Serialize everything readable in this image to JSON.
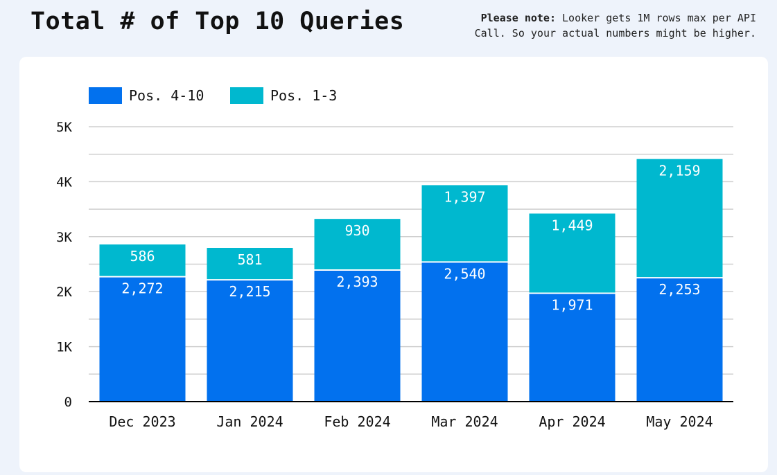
{
  "header": {
    "title": "Total # of Top 10 Queries",
    "note_bold": "Please note:",
    "note_line1": "Looker gets 1M rows max per API",
    "note_line2": "Call. So your actual numbers might be higher."
  },
  "colors": {
    "background": "#eef3fb",
    "card": "#ffffff",
    "pos_4_10": "#0271ee",
    "pos_1_3": "#00b8cf",
    "grid": "#cfcfcf",
    "axis": "#000000"
  },
  "chart_data": {
    "type": "bar",
    "stacked": true,
    "title": "",
    "xlabel": "",
    "ylabel": "",
    "categories": [
      "Dec 2023",
      "Jan 2024",
      "Feb 2024",
      "Mar 2024",
      "Apr 2024",
      "May 2024"
    ],
    "series": [
      {
        "name": "Pos. 4-10",
        "color": "#0271ee",
        "values": [
          2272,
          2215,
          2393,
          2540,
          1971,
          2253
        ],
        "labels": [
          "2,272",
          "2,215",
          "2,393",
          "2,540",
          "1,971",
          "2,253"
        ]
      },
      {
        "name": "Pos. 1-3",
        "color": "#00b8cf",
        "values": [
          586,
          581,
          930,
          1397,
          1449,
          2159
        ],
        "labels": [
          "586",
          "581",
          "930",
          "1,397",
          "1,449",
          "2,159"
        ]
      }
    ],
    "ylim": [
      0,
      5000
    ],
    "yticks": [
      0,
      1000,
      2000,
      3000,
      4000,
      5000
    ],
    "ytick_labels": [
      "0",
      "1K",
      "2K",
      "3K",
      "4K",
      "5K"
    ],
    "grid": true,
    "legend_position": "top-left"
  }
}
